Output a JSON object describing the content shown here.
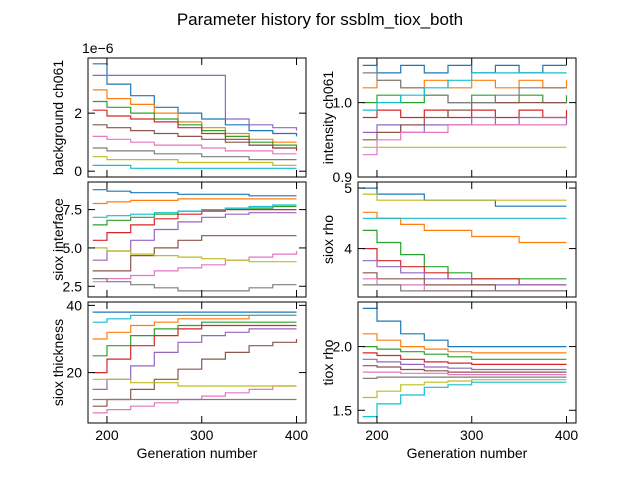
{
  "chart_data": {
    "type": "line",
    "title": "Parameter history for ssblm_tiox_both",
    "generations": [
      185,
      200,
      225,
      250,
      275,
      300,
      325,
      350,
      375,
      400
    ],
    "series_colors": [
      "#1f77b4",
      "#ff7f0e",
      "#2ca02c",
      "#d62728",
      "#9467bd",
      "#8c564b",
      "#e377c2",
      "#7f7f7f",
      "#bcbd22",
      "#17becf"
    ],
    "panels": [
      {
        "ylabel": "background ch061",
        "xlabel": "",
        "offset_label": "1e−6",
        "ylim": [
          -0.2,
          3.9
        ],
        "yticks": [
          0,
          2
        ],
        "ytick_labels": [
          "0",
          "2"
        ],
        "xlim": [
          180,
          410
        ],
        "xticks": [
          200,
          300,
          400
        ],
        "xtick_labels": [
          "",
          "",
          ""
        ],
        "series": [
          {
            "values": [
              3.7,
              3.0,
              2.6,
              2.2,
              2.0,
              1.8,
              1.6,
              1.4,
              1.3,
              1.2
            ]
          },
          {
            "values": [
              2.8,
              2.5,
              2.3,
              2.0,
              1.7,
              1.5,
              1.3,
              1.1,
              1.0,
              1.0
            ]
          },
          {
            "values": [
              2.4,
              2.2,
              2.0,
              1.8,
              1.6,
              1.4,
              1.2,
              1.0,
              0.9,
              0.8
            ]
          },
          {
            "values": [
              2.1,
              1.9,
              1.8,
              1.7,
              1.5,
              1.3,
              1.1,
              0.9,
              0.8,
              0.7
            ]
          },
          {
            "values": [
              3.3,
              3.3,
              3.3,
              3.3,
              3.3,
              3.3,
              1.8,
              1.6,
              1.5,
              1.4
            ]
          },
          {
            "values": [
              1.6,
              1.5,
              1.4,
              1.3,
              1.2,
              1.1,
              1.0,
              0.9,
              0.8,
              0.8
            ]
          },
          {
            "values": [
              1.2,
              1.1,
              1.0,
              0.9,
              0.9,
              0.8,
              0.7,
              0.7,
              0.6,
              0.6
            ]
          },
          {
            "values": [
              0.8,
              0.7,
              0.7,
              0.6,
              0.6,
              0.5,
              0.5,
              0.4,
              0.4,
              0.4
            ]
          },
          {
            "values": [
              0.5,
              0.4,
              0.4,
              0.4,
              0.3,
              0.3,
              0.3,
              0.3,
              0.2,
              0.2
            ]
          },
          {
            "values": [
              0.2,
              0.2,
              0.1,
              0.1,
              0.1,
              0.1,
              0.1,
              0.1,
              0.1,
              0.1
            ]
          }
        ]
      },
      {
        "ylabel": "intensity ch061",
        "xlabel": "",
        "offset_label": "",
        "ylim": [
          0.9,
          1.06
        ],
        "yticks": [
          0.9,
          1.0
        ],
        "ytick_labels": [
          "0.9",
          "1.0"
        ],
        "xlim": [
          180,
          410
        ],
        "xticks": [
          200,
          300,
          400
        ],
        "xtick_labels": [
          "",
          "",
          ""
        ],
        "series": [
          {
            "values": [
              1.05,
              1.04,
              1.05,
              1.04,
              1.05,
              1.04,
              1.05,
              1.04,
              1.05,
              1.05
            ]
          },
          {
            "values": [
              1.02,
              1.03,
              1.02,
              1.03,
              1.02,
              1.03,
              1.02,
              1.03,
              1.02,
              1.03
            ]
          },
          {
            "values": [
              1.0,
              1.01,
              1.0,
              1.01,
              1.0,
              1.01,
              1.0,
              1.01,
              1.0,
              1.01
            ]
          },
          {
            "values": [
              0.98,
              0.99,
              0.98,
              0.99,
              0.98,
              0.99,
              0.98,
              0.99,
              0.98,
              0.99
            ]
          },
          {
            "values": [
              0.96,
              0.97,
              0.96,
              0.97,
              0.97,
              0.98,
              0.97,
              0.98,
              0.98,
              0.97
            ]
          },
          {
            "values": [
              0.95,
              0.96,
              0.97,
              0.98,
              0.99,
              1.0,
              1.0,
              1.0,
              1.0,
              1.0
            ]
          },
          {
            "values": [
              0.93,
              0.95,
              0.96,
              0.96,
              0.97,
              0.97,
              0.97,
              0.97,
              0.97,
              0.97
            ]
          },
          {
            "values": [
              1.04,
              1.03,
              1.02,
              1.01,
              1.0,
              1.0,
              1.01,
              1.02,
              1.02,
              1.02
            ]
          },
          {
            "values": [
              0.94,
              0.94,
              0.94,
              0.94,
              0.94,
              0.94,
              0.94,
              0.94,
              0.94,
              0.94
            ]
          },
          {
            "values": [
              0.99,
              1.0,
              1.01,
              1.02,
              1.03,
              1.04,
              1.04,
              1.04,
              1.04,
              1.04
            ]
          }
        ]
      },
      {
        "ylabel": "siox interface",
        "xlabel": "",
        "offset_label": "",
        "ylim": [
          1.8,
          9.3
        ],
        "yticks": [
          2.5,
          5.0,
          7.5
        ],
        "ytick_labels": [
          "2.5",
          "5.0",
          "7.5"
        ],
        "xlim": [
          180,
          410
        ],
        "xticks": [
          200,
          300,
          400
        ],
        "xtick_labels": [
          "",
          "",
          ""
        ],
        "series": [
          {
            "values": [
              8.8,
              8.7,
              8.6,
              8.6,
              8.5,
              8.5,
              8.5,
              8.4,
              8.4,
              8.4
            ]
          },
          {
            "values": [
              7.9,
              8.0,
              8.1,
              8.1,
              8.2,
              8.2,
              8.2,
              8.2,
              8.2,
              8.2
            ]
          },
          {
            "values": [
              6.5,
              6.8,
              7.0,
              7.2,
              7.4,
              7.5,
              7.6,
              7.6,
              7.7,
              7.7
            ]
          },
          {
            "values": [
              5.5,
              6.0,
              6.5,
              6.9,
              7.2,
              7.4,
              7.5,
              7.5,
              7.5,
              7.5
            ]
          },
          {
            "values": [
              4.2,
              4.8,
              5.5,
              6.2,
              6.7,
              7.0,
              7.2,
              7.3,
              7.3,
              7.3
            ]
          },
          {
            "values": [
              3.5,
              3.5,
              4.5,
              5.0,
              5.5,
              5.8,
              5.8,
              5.8,
              5.8,
              5.8
            ]
          },
          {
            "values": [
              2.8,
              3.0,
              3.2,
              3.5,
              3.7,
              3.9,
              4.2,
              4.4,
              4.6,
              4.8
            ]
          },
          {
            "values": [
              3.0,
              2.8,
              2.6,
              2.4,
              2.2,
              2.2,
              2.2,
              2.4,
              2.6,
              2.6
            ]
          },
          {
            "values": [
              5.0,
              4.8,
              4.6,
              4.5,
              4.4,
              4.3,
              4.2,
              4.1,
              4.1,
              4.1
            ]
          },
          {
            "values": [
              7.0,
              7.1,
              7.2,
              7.3,
              7.4,
              7.5,
              7.6,
              7.7,
              7.8,
              7.8
            ]
          }
        ]
      },
      {
        "ylabel": "siox rho",
        "xlabel": "",
        "offset_label": "",
        "ylim": [
          3.2,
          5.1
        ],
        "yticks": [
          4,
          5
        ],
        "ytick_labels": [
          "4",
          "5"
        ],
        "xlim": [
          180,
          410
        ],
        "xticks": [
          200,
          300,
          400
        ],
        "xtick_labels": [
          "",
          "",
          ""
        ],
        "series": [
          {
            "values": [
              5.0,
              4.9,
              4.9,
              4.8,
              4.8,
              4.8,
              4.7,
              4.7,
              4.7,
              4.7
            ]
          },
          {
            "values": [
              4.6,
              4.5,
              4.4,
              4.3,
              4.3,
              4.2,
              4.2,
              4.1,
              4.1,
              4.1
            ]
          },
          {
            "values": [
              4.3,
              4.1,
              3.9,
              3.7,
              3.6,
              3.5,
              3.5,
              3.5,
              3.5,
              3.5
            ]
          },
          {
            "values": [
              4.0,
              3.8,
              3.7,
              3.6,
              3.5,
              3.5,
              3.5,
              3.4,
              3.4,
              3.4
            ]
          },
          {
            "values": [
              3.8,
              3.7,
              3.6,
              3.5,
              3.5,
              3.4,
              3.4,
              3.4,
              3.4,
              3.4
            ]
          },
          {
            "values": [
              3.6,
              3.5,
              3.5,
              3.4,
              3.4,
              3.4,
              3.3,
              3.3,
              3.3,
              3.3
            ]
          },
          {
            "values": [
              3.5,
              3.4,
              3.4,
              3.3,
              3.3,
              3.3,
              3.3,
              3.3,
              3.3,
              3.3
            ]
          },
          {
            "values": [
              3.4,
              3.4,
              3.3,
              3.3,
              3.3,
              3.3,
              3.3,
              3.3,
              3.3,
              3.3
            ]
          },
          {
            "values": [
              4.9,
              4.8,
              4.8,
              4.8,
              4.8,
              4.8,
              4.8,
              4.8,
              4.8,
              4.8
            ]
          },
          {
            "values": [
              4.5,
              4.5,
              4.5,
              4.5,
              4.5,
              4.5,
              4.5,
              4.5,
              4.5,
              4.5
            ]
          }
        ]
      },
      {
        "ylabel": "siox thickness",
        "xlabel": "Generation number",
        "offset_label": "",
        "ylim": [
          5,
          41
        ],
        "yticks": [
          20,
          40
        ],
        "ytick_labels": [
          "20",
          "40"
        ],
        "xlim": [
          180,
          410
        ],
        "xticks": [
          200,
          300,
          400
        ],
        "xtick_labels": [
          "200",
          "300",
          "400"
        ],
        "series": [
          {
            "values": [
              38,
              38,
              38,
              38,
              38,
              38,
              38,
              38,
              38,
              38
            ]
          },
          {
            "values": [
              30,
              32,
              34,
              35,
              36,
              36,
              36,
              37,
              37,
              37
            ]
          },
          {
            "values": [
              25,
              28,
              31,
              33,
              34,
              35,
              35,
              35,
              35,
              35
            ]
          },
          {
            "values": [
              20,
              24,
              28,
              31,
              33,
              34,
              34,
              34,
              34,
              34
            ]
          },
          {
            "values": [
              15,
              18,
              22,
              26,
              29,
              31,
              32,
              33,
              33,
              33
            ]
          },
          {
            "values": [
              10,
              12,
              15,
              18,
              21,
              24,
              26,
              28,
              29,
              30
            ]
          },
          {
            "values": [
              8,
              9,
              10,
              11,
              12,
              13,
              14,
              15,
              16,
              16
            ]
          },
          {
            "values": [
              12,
              12,
              12,
              12,
              12,
              12,
              12,
              12,
              12,
              12
            ]
          },
          {
            "values": [
              18,
              18,
              17,
              17,
              16,
              16,
              16,
              16,
              16,
              16
            ]
          },
          {
            "values": [
              35,
              36,
              37,
              37,
              37,
              37,
              37,
              37,
              37,
              37
            ]
          }
        ]
      },
      {
        "ylabel": "tiox rho",
        "xlabel": "Generation number",
        "offset_label": "",
        "ylim": [
          1.4,
          2.35
        ],
        "yticks": [
          1.5,
          2.0
        ],
        "ytick_labels": [
          "1.5",
          "2.0"
        ],
        "xlim": [
          180,
          410
        ],
        "xticks": [
          200,
          300,
          400
        ],
        "xtick_labels": [
          "200",
          "300",
          "400"
        ],
        "series": [
          {
            "values": [
              2.3,
              2.2,
              2.1,
              2.05,
              2.0,
              2.0,
              2.0,
              2.0,
              2.0,
              2.0
            ]
          },
          {
            "values": [
              2.1,
              2.05,
              2.0,
              1.98,
              1.96,
              1.95,
              1.95,
              1.95,
              1.95,
              1.95
            ]
          },
          {
            "values": [
              2.0,
              1.98,
              1.96,
              1.94,
              1.92,
              1.9,
              1.9,
              1.9,
              1.9,
              1.9
            ]
          },
          {
            "values": [
              1.95,
              1.93,
              1.9,
              1.88,
              1.87,
              1.86,
              1.86,
              1.86,
              1.86,
              1.86
            ]
          },
          {
            "values": [
              1.9,
              1.88,
              1.86,
              1.84,
              1.83,
              1.82,
              1.82,
              1.82,
              1.82,
              1.82
            ]
          },
          {
            "values": [
              1.85,
              1.84,
              1.82,
              1.81,
              1.8,
              1.8,
              1.8,
              1.8,
              1.8,
              1.8
            ]
          },
          {
            "values": [
              1.8,
              1.8,
              1.79,
              1.79,
              1.78,
              1.78,
              1.78,
              1.78,
              1.78,
              1.78
            ]
          },
          {
            "values": [
              1.75,
              1.76,
              1.76,
              1.76,
              1.76,
              1.76,
              1.76,
              1.76,
              1.76,
              1.76
            ]
          },
          {
            "values": [
              1.6,
              1.65,
              1.7,
              1.72,
              1.73,
              1.74,
              1.74,
              1.74,
              1.74,
              1.74
            ]
          },
          {
            "values": [
              1.45,
              1.55,
              1.62,
              1.68,
              1.7,
              1.72,
              1.72,
              1.72,
              1.72,
              1.72
            ]
          }
        ]
      }
    ]
  }
}
